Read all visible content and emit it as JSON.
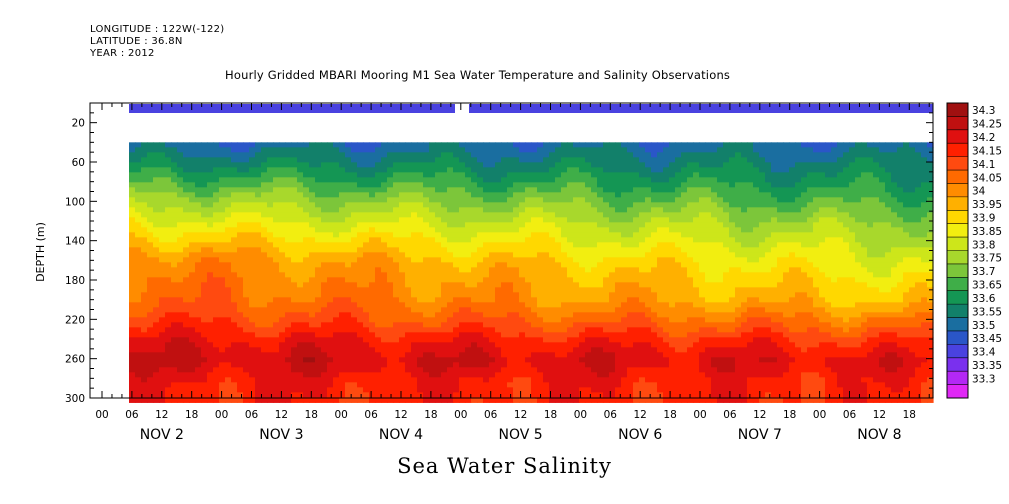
{
  "header": {
    "longitude": "LONGITUDE : 122W(-122)",
    "latitude": "LATITUDE : 36.8N",
    "year": "YEAR : 2012"
  },
  "chart_data": {
    "type": "heatmap",
    "title": "Hourly Gridded MBARI Mooring M1 Sea Water Temperature and Salinity Observations",
    "xlabel": "Sea Water Salinity",
    "ylabel": "DEPTH (m)",
    "ylim": [
      300,
      0
    ],
    "y_ticks": [
      20,
      60,
      100,
      140,
      180,
      220,
      260,
      300
    ],
    "x_hour_ticks": [
      "00",
      "06",
      "12",
      "18",
      "00",
      "06",
      "12",
      "18",
      "00",
      "06",
      "12",
      "18",
      "00",
      "06",
      "12",
      "18",
      "00",
      "06",
      "12",
      "18",
      "00",
      "06",
      "12",
      "18",
      "00",
      "06",
      "12",
      "18"
    ],
    "x_day_labels": [
      "NOV 2",
      "NOV 3",
      "NOV 4",
      "NOV 5",
      "NOV 6",
      "NOV 7",
      "NOV 8"
    ],
    "colorbar_levels": [
      34.3,
      34.25,
      34.2,
      34.15,
      34.1,
      34.05,
      34,
      33.95,
      33.9,
      33.85,
      33.8,
      33.75,
      33.7,
      33.65,
      33.6,
      33.55,
      33.5,
      33.45,
      33.4,
      33.35,
      33.3
    ],
    "colorbar_colors": [
      "#a01010",
      "#c01010",
      "#e01010",
      "#ff2000",
      "#ff4a10",
      "#ff6a00",
      "#ff8c00",
      "#ffb000",
      "#ffd800",
      "#f2ee10",
      "#cde61a",
      "#a8d82c",
      "#7cc63a",
      "#3fae48",
      "#149654",
      "#12806a",
      "#1a6ea0",
      "#2a56c8",
      "#4a42e0",
      "#7a30ee",
      "#b428f5",
      "#e028f5"
    ],
    "surface_band_value": 33.45,
    "profile_depths": [
      40,
      60,
      80,
      100,
      120,
      140,
      160,
      180,
      200,
      220,
      240,
      260,
      280,
      300
    ],
    "profile_start": [
      33.52,
      33.6,
      33.7,
      33.8,
      33.88,
      33.97,
      34.05,
      34.08,
      34.1,
      34.15,
      34.22,
      34.26,
      34.2,
      34.18
    ],
    "profile_end": [
      33.52,
      33.57,
      33.62,
      33.68,
      33.75,
      33.8,
      33.85,
      33.9,
      33.95,
      34.05,
      34.15,
      34.22,
      34.18,
      34.17
    ]
  }
}
